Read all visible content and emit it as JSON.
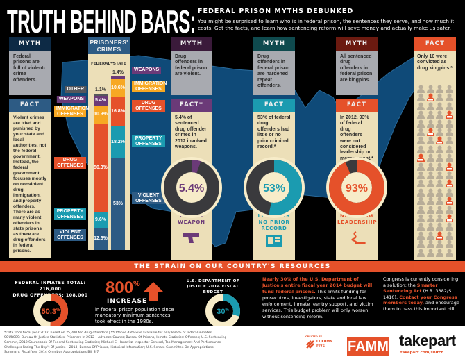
{
  "header": {
    "title": "TRUTH BEHIND BARS:",
    "subtitle": "FEDERAL PRISON MYTHS DEBUNKED",
    "intro": "You might be surprised to learn who is in federal prison, the sentences they serve, and how much it costs. Get the facts, and learn how sentencing reform will save money and actually make us safer."
  },
  "colors": {
    "navy": "#0d2a45",
    "blue": "#2d5b84",
    "purple": "#6b3a78",
    "teal": "#1b9bb0",
    "red": "#e5512a",
    "orange": "#f7a823",
    "beige": "#ecdfb8",
    "grey": "#a8aab0",
    "map": "#0f4a78"
  },
  "myth1": {
    "myth_label": "MYTH",
    "myth": "Federal prisons are full of violent-crime offenders.",
    "fact_label": "FACT",
    "fact": "Violent crimes are tried and punished by your state and local authorities, not the federal government. Instead, the federal government focuses mostly on nonviolent drug, immigration, and property offenders. There are as many violent offenders in state prisons as there are drug offenders in federal prisons."
  },
  "crimes": {
    "title": "PRISONERS' CRIMES",
    "federal_label": "FEDERAL**",
    "state_label": "STATE",
    "federal": [
      {
        "name": "OTHER",
        "value": 1.1,
        "pct": "1.1%",
        "color": "#55575c"
      },
      {
        "name": "WEAPONS",
        "value": 5.4,
        "pct": "5.4%",
        "color": "#6b3a78"
      },
      {
        "name": "IMMIGRATION OFFENSES",
        "value": 10.9,
        "pct": "10.9%",
        "color": "#f7a823"
      },
      {
        "name": "DRUG OFFENSES",
        "value": 50.3,
        "pct": "50.3%",
        "color": "#e5512a"
      },
      {
        "name": "PROPERTY OFFENSES",
        "value": 9.6,
        "pct": "9.6%",
        "color": "#1b9bb0"
      },
      {
        "name": "VIOLENT OFFENSES",
        "value": 12.6,
        "pct": "12.6%",
        "color": "#2d5b84"
      }
    ],
    "state": [
      {
        "name": "WEAPONS",
        "value": 1.4,
        "pct": "1.4%",
        "color": "#6b3a78"
      },
      {
        "name": "IMMIGRATION OFFENSES",
        "value": 10.6,
        "pct": "10.6%",
        "color": "#f7a823"
      },
      {
        "name": "DRUG OFFENSES",
        "value": 16.8,
        "pct": "16.8%",
        "color": "#e5512a"
      },
      {
        "name": "PROPERTY OFFENSES",
        "value": 18.2,
        "pct": "18.2%",
        "color": "#1b9bb0"
      },
      {
        "name": "VIOLENT OFFENSES",
        "value": 53,
        "pct": "53%",
        "color": "#2d5b84"
      }
    ]
  },
  "columns": [
    {
      "myth_label": "MYTH",
      "myth": "Drug offenders in federal prison are violent.",
      "fact_label": "FACT*",
      "fact": "5.4% of sentenced drug offender crimes in 2012 involved weapons.",
      "value": 5.4,
      "pct": "5.4%",
      "caption": "USED A WEAPON",
      "icon": "handgun-icon",
      "head": "#3a1a3a",
      "accent": "#6b3a78"
    },
    {
      "myth_label": "MYTH",
      "myth": "Drug offenders in federal prison are hardened repeat offenders.",
      "fact_label": "FACT",
      "fact": "53% of federal drug offenders had little or no prior criminal record.*",
      "value": 53,
      "pct": "53%",
      "caption": "LITTLE OR NO PRIOR RECORD",
      "icon": "id-card-icon",
      "head": "#0f4a4e",
      "accent": "#1b9bb0"
    },
    {
      "myth_label": "MYTH",
      "myth": "All sentenced drug offenders in federal prison are kingpins.",
      "fact_label": "FACT",
      "fact": "In 2012, 93% of federal drug offenders were not considered leadership or management.*",
      "value": 93,
      "pct": "93%",
      "caption": "NOT DRUG LEADERSHIP",
      "icon": "smoke-icon",
      "head": "#6b1a10",
      "accent": "#e5512a"
    }
  ],
  "kingpins": {
    "fact_label": "FACT",
    "fact": "Only 10 were convicted as drug kingpins.*",
    "count": 10
  },
  "strain": {
    "band": "THE STRAIN ON OUR COUNTRY'S RESOURCES",
    "inmates_total": "FEDERAL INMATES TOTAL: 216,000",
    "drug_offenders": "DRUG OFFENDERS: 108,000",
    "drug_share": 50.3,
    "drug_share_label": "50.3",
    "pct_sign": "%",
    "increase_num": "800",
    "increase_label": "INCREASE",
    "increase_text": "in federal prison population since mandatory minimum sentences took effect in the 1980s.",
    "budget_title": "U.S. DEPARTMENT OF JUSTICE 2014 FISCAL BUDGET",
    "budget_share": 30,
    "budget_label": "30",
    "budget_highlight": "Nearly 30% of the U.S. Department of Justice's entire fiscal year 2014 budget will fund federal prisons.",
    "budget_text": " This limits funding for prosecutors, investigators, state and local law enforcement, inmate reentry support, and victim services. This budget problem will only worsen without sentencing reform.",
    "congress_1": "Congress is currently considering a solution: the ",
    "congress_act": "Smarter Sentencing Act",
    "congress_2": " (H.R. 3382/S. 1410). ",
    "congress_cta": "Contact your Congress members today,",
    "congress_3": " and encourage them to pass this important bill."
  },
  "footer": {
    "note": "*Data from fiscal year 2012, based on 25,700 fed drug offenders   |   **Offense data was available for only 89.9% of federal inmates.",
    "sources": "SOURCES: Bureau Of Justice Statistics, Prisoners In 2012 – Advance Counts; Bureau Of Prisons, Inmate Statistics: Offenses; U.S. Sentencing Comm'n, 2012 Sourcebook Of Federal Sentencing Statistics; Michael E. Horowitz, Inspector General, Top Management And Performance Challenges Facing The Dep't Of Justice – 2013; Bureau Of Prisons, Historical Information; U.S. Senate Committee On Appropriations, Summary: Fiscal Year 2014 Omnibus Appropriations Bill S-7",
    "created_by": "CREATED BY",
    "column_five": "COLUMN FIVE",
    "famm": "FAMM",
    "takepart": "takepart",
    "takepart_url": "takepart.com/snitch"
  }
}
